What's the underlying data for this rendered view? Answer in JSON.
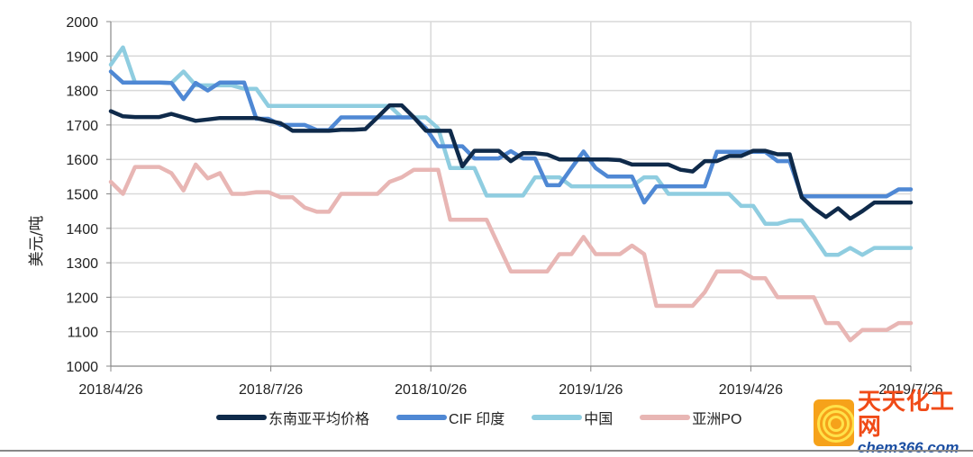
{
  "chart_data": {
    "type": "line",
    "title": "",
    "xlabel": "",
    "ylabel": "美元/吨",
    "ylim": [
      1000,
      2000
    ],
    "yticks": [
      1000,
      1100,
      1200,
      1300,
      1400,
      1500,
      1600,
      1700,
      1800,
      1900,
      2000
    ],
    "xtick_labels": [
      "2018/4/26",
      "2018/7/26",
      "2018/10/26",
      "2019/1/26",
      "2019/4/26",
      "2019/7/26"
    ],
    "grid": "horizontal and vertical at x ticks",
    "legend_position": "bottom",
    "n_points": 67,
    "series": [
      {
        "name": "东南亚平均价格",
        "color": "#0f2a4a",
        "values": [
          1740,
          1725,
          1723,
          1723,
          1723,
          1732,
          1722,
          1712,
          1716,
          1720,
          1720,
          1720,
          1720,
          1712,
          1705,
          1683,
          1683,
          1683,
          1683,
          1686,
          1686,
          1688,
          1722,
          1757,
          1757,
          1722,
          1683,
          1683,
          1683,
          1580,
          1625,
          1625,
          1625,
          1595,
          1618,
          1618,
          1614,
          1600,
          1600,
          1600,
          1600,
          1600,
          1598,
          1585,
          1585,
          1585,
          1585,
          1570,
          1565,
          1595,
          1595,
          1610,
          1610,
          1625,
          1625,
          1615,
          1615,
          1490,
          1458,
          1433,
          1458,
          1428,
          1450,
          1475,
          1475,
          1475,
          1475
        ]
      },
      {
        "name": "CIF 印度",
        "color": "#4f88d4",
        "values": [
          1855,
          1823,
          1823,
          1823,
          1823,
          1822,
          1775,
          1822,
          1800,
          1823,
          1823,
          1823,
          1718,
          1718,
          1700,
          1700,
          1700,
          1685,
          1685,
          1722,
          1722,
          1722,
          1722,
          1722,
          1722,
          1722,
          1690,
          1638,
          1638,
          1638,
          1603,
          1603,
          1603,
          1624,
          1603,
          1603,
          1525,
          1525,
          1575,
          1623,
          1575,
          1550,
          1550,
          1550,
          1475,
          1522,
          1522,
          1522,
          1522,
          1522,
          1622,
          1622,
          1622,
          1622,
          1622,
          1595,
          1595,
          1493,
          1493,
          1493,
          1493,
          1493,
          1493,
          1493,
          1493,
          1513,
          1513
        ]
      },
      {
        "name": "中国",
        "color": "#8fcde0",
        "values": [
          1875,
          1925,
          1823,
          1823,
          1823,
          1822,
          1855,
          1815,
          1815,
          1815,
          1815,
          1805,
          1805,
          1755,
          1755,
          1755,
          1755,
          1755,
          1755,
          1755,
          1755,
          1755,
          1755,
          1755,
          1722,
          1722,
          1722,
          1690,
          1575,
          1575,
          1575,
          1495,
          1495,
          1495,
          1495,
          1548,
          1548,
          1548,
          1522,
          1522,
          1522,
          1522,
          1522,
          1522,
          1548,
          1548,
          1500,
          1500,
          1500,
          1500,
          1500,
          1500,
          1465,
          1465,
          1413,
          1413,
          1423,
          1423,
          1375,
          1323,
          1323,
          1343,
          1323,
          1343,
          1343,
          1343,
          1343
        ]
      },
      {
        "name": "亚洲PO",
        "color": "#e8b6b4",
        "values": [
          1535,
          1500,
          1578,
          1578,
          1578,
          1560,
          1510,
          1585,
          1545,
          1560,
          1500,
          1500,
          1505,
          1505,
          1490,
          1490,
          1460,
          1448,
          1448,
          1500,
          1500,
          1500,
          1500,
          1535,
          1548,
          1570,
          1570,
          1570,
          1425,
          1425,
          1425,
          1425,
          1350,
          1275,
          1275,
          1275,
          1275,
          1325,
          1325,
          1375,
          1325,
          1325,
          1325,
          1350,
          1325,
          1175,
          1175,
          1175,
          1175,
          1215,
          1275,
          1275,
          1275,
          1255,
          1255,
          1200,
          1200,
          1200,
          1200,
          1125,
          1125,
          1075,
          1105,
          1105,
          1105,
          1125,
          1125
        ]
      }
    ]
  },
  "axis": {
    "ylabel": "美元/吨"
  },
  "legend": {
    "items": [
      {
        "label": "东南亚平均价格",
        "color": "#0f2a4a"
      },
      {
        "label": "CIF 印度",
        "color": "#4f88d4"
      },
      {
        "label": "中国",
        "color": "#8fcde0"
      },
      {
        "label": "亚洲PO",
        "color": "#e8b6b4"
      }
    ]
  },
  "watermark": {
    "cn": "天天化工网",
    "en": "chem366.com"
  }
}
